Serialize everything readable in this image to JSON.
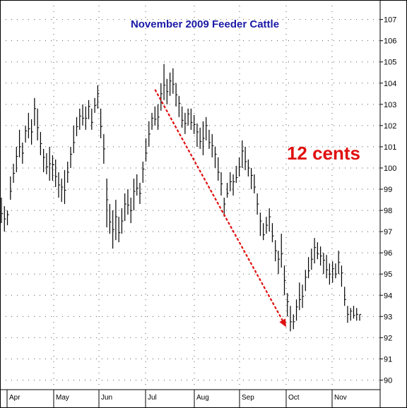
{
  "chart_data": {
    "type": "ohlc",
    "title": "November 2009 Feeder Cattle",
    "annotation": "12 cents",
    "xlabel": "",
    "ylabel": "",
    "ylim": [
      89.5,
      107.5
    ],
    "y_ticks": [
      90,
      91,
      92,
      93,
      94,
      95,
      96,
      97,
      98,
      99,
      100,
      101,
      102,
      103,
      104,
      105,
      106,
      107
    ],
    "months": [
      "Apr",
      "May",
      "Jun",
      "Jul",
      "Aug",
      "Sep",
      "Oct",
      "Nov"
    ],
    "grid": true,
    "colors": {
      "title": "#1a1aa6",
      "annotation": "#e01010",
      "arrow": "#e01010",
      "bars": "#000000",
      "grid": "#555555"
    },
    "trend_arrow": {
      "from": {
        "month": "Jul",
        "day": 7,
        "value": 103.7
      },
      "to": {
        "month": "Oct",
        "day": 1,
        "value": 92.5
      }
    },
    "series": [
      {
        "values": [
          [
            98.6,
            97.4
          ],
          [
            98.2,
            97.0
          ],
          [
            98.0,
            97.3
          ],
          [
            99.6,
            98.5
          ],
          [
            100.2,
            99.3
          ],
          [
            101.0,
            99.8
          ],
          [
            101.8,
            100.5
          ],
          [
            101.2,
            100.2
          ],
          [
            102.0,
            101.2
          ],
          [
            102.6,
            101.4
          ],
          [
            102.3,
            101.1
          ],
          [
            103.3,
            102.0
          ],
          [
            102.8,
            101.3
          ],
          [
            101.7,
            100.6
          ],
          [
            100.9,
            99.8
          ],
          [
            100.7,
            99.7
          ],
          [
            101.0,
            99.4
          ],
          [
            100.6,
            99.4
          ],
          [
            100.4,
            99.1
          ],
          [
            99.8,
            98.6
          ],
          [
            99.5,
            98.4
          ],
          [
            99.9,
            98.3
          ],
          [
            100.3,
            99.3
          ],
          [
            101.0,
            100.0
          ],
          [
            102.0,
            100.7
          ],
          [
            102.4,
            101.5
          ],
          [
            102.8,
            101.8
          ],
          [
            103.0,
            102.0
          ],
          [
            102.9,
            101.8
          ],
          [
            103.2,
            102.3
          ],
          [
            102.8,
            101.8
          ],
          [
            103.3,
            102.6
          ],
          [
            103.9,
            102.8
          ],
          [
            102.8,
            101.4
          ],
          [
            101.6,
            100.2
          ],
          [
            99.5,
            97.2
          ],
          [
            98.3,
            96.9
          ],
          [
            98.0,
            96.2
          ],
          [
            98.5,
            96.6
          ],
          [
            97.7,
            96.5
          ],
          [
            98.1,
            96.9
          ],
          [
            98.8,
            97.5
          ],
          [
            99.0,
            97.8
          ],
          [
            98.6,
            97.4
          ],
          [
            99.5,
            98.0
          ],
          [
            99.7,
            98.7
          ],
          [
            99.3,
            98.3
          ],
          [
            100.3,
            99.3
          ],
          [
            101.4,
            100.3
          ],
          [
            102.2,
            101.0
          ],
          [
            102.6,
            101.8
          ],
          [
            102.9,
            102.0
          ],
          [
            103.0,
            101.8
          ],
          [
            104.0,
            102.7
          ],
          [
            104.9,
            103.2
          ],
          [
            104.2,
            103.0
          ],
          [
            104.5,
            103.4
          ],
          [
            104.7,
            103.5
          ],
          [
            104.0,
            102.9
          ],
          [
            103.4,
            102.4
          ],
          [
            102.9,
            101.9
          ],
          [
            102.6,
            101.6
          ],
          [
            102.8,
            102.0
          ],
          [
            102.8,
            101.8
          ],
          [
            102.5,
            101.6
          ],
          [
            102.1,
            101.0
          ],
          [
            101.9,
            100.9
          ],
          [
            102.2,
            100.6
          ],
          [
            102.4,
            101.3
          ],
          [
            101.8,
            100.9
          ],
          [
            101.6,
            100.5
          ],
          [
            101.0,
            100.0
          ],
          [
            100.5,
            99.4
          ],
          [
            99.8,
            98.7
          ],
          [
            98.6,
            97.7
          ],
          [
            99.3,
            98.6
          ],
          [
            99.8,
            98.9
          ],
          [
            99.7,
            98.7
          ],
          [
            100.1,
            99.3
          ],
          [
            100.5,
            99.6
          ],
          [
            101.3,
            100.0
          ],
          [
            101.0,
            99.9
          ],
          [
            100.4,
            99.6
          ],
          [
            100.0,
            99.0
          ],
          [
            99.7,
            98.8
          ],
          [
            98.8,
            97.8
          ],
          [
            97.9,
            96.8
          ],
          [
            97.4,
            96.6
          ],
          [
            97.7,
            96.9
          ],
          [
            98.1,
            97.0
          ],
          [
            97.4,
            96.5
          ],
          [
            96.6,
            95.6
          ],
          [
            96.1,
            95.0
          ],
          [
            96.9,
            95.3
          ],
          [
            95.4,
            94.0
          ],
          [
            94.1,
            93.0
          ],
          [
            93.5,
            92.3
          ],
          [
            93.1,
            92.4
          ],
          [
            93.8,
            92.8
          ],
          [
            94.6,
            93.3
          ],
          [
            94.5,
            93.4
          ],
          [
            95.2,
            94.2
          ],
          [
            95.8,
            94.8
          ],
          [
            96.2,
            95.2
          ],
          [
            96.7,
            95.5
          ],
          [
            96.5,
            95.7
          ],
          [
            96.3,
            95.4
          ],
          [
            96.0,
            95.0
          ],
          [
            95.9,
            94.8
          ],
          [
            95.5,
            94.5
          ],
          [
            95.6,
            94.6
          ],
          [
            95.5,
            94.8
          ],
          [
            96.1,
            95.0
          ],
          [
            95.4,
            94.4
          ],
          [
            94.4,
            93.5
          ],
          [
            93.5,
            92.7
          ],
          [
            93.4,
            92.8
          ],
          [
            93.5,
            92.9
          ],
          [
            93.4,
            92.8
          ],
          [
            93.1,
            92.8
          ]
        ]
      }
    ]
  }
}
